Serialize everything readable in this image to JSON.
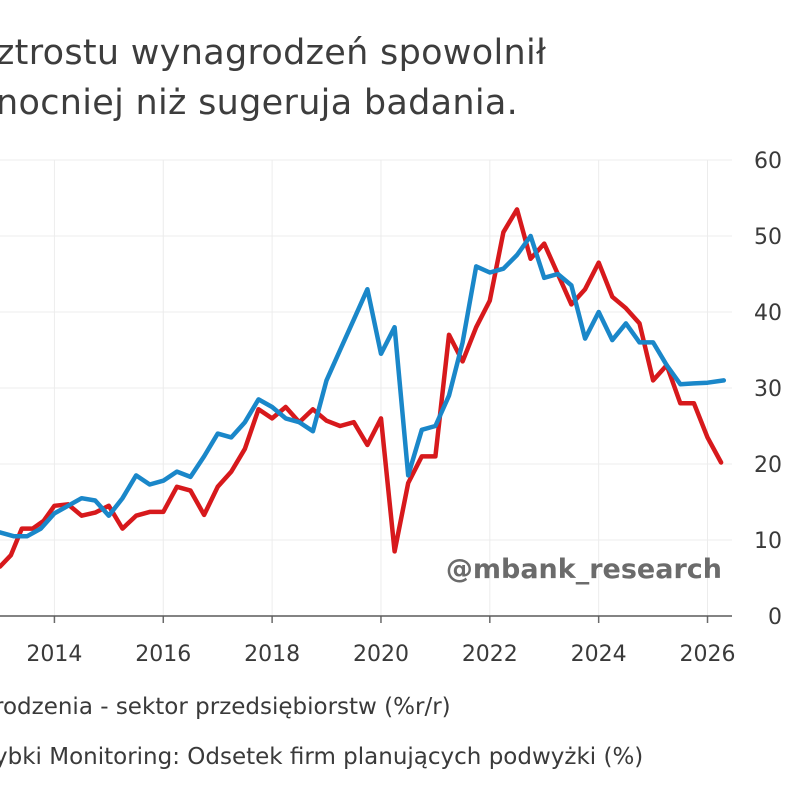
{
  "title": {
    "line1": "ztrostu wynagrodzeń spowolnił",
    "line2": "nocniej niż sugeruja badania."
  },
  "watermark": "@mbank_research",
  "legend": [
    {
      "label": "rodzenia - sektor przedsiębiorstw (%r/r)",
      "color": "#d7191c"
    },
    {
      "label": "ybki Monitoring: Odsetek firm planujących podwyżki (%)",
      "color": "#1a87c9"
    }
  ],
  "chart_data": {
    "type": "line",
    "x_tick_labels": [
      "2014",
      "2016",
      "2018",
      "2020",
      "2022",
      "2024",
      "2026"
    ],
    "y_tick_labels": [
      "0",
      "10",
      "20",
      "30",
      "40",
      "50",
      "60"
    ],
    "ylim": [
      0,
      60
    ],
    "xlim": [
      2013.0,
      2026.45
    ],
    "y_axis_side": "right",
    "grid": true,
    "series": [
      {
        "name": "rodzenia - sektor przedsiębiorstw (%r/r)",
        "color": "#d7191c",
        "points": [
          [
            2013.0,
            6.5
          ],
          [
            2013.2,
            8.0
          ],
          [
            2013.4,
            11.5
          ],
          [
            2013.6,
            11.5
          ],
          [
            2013.8,
            12.5
          ],
          [
            2014.0,
            14.5
          ],
          [
            2014.25,
            14.7
          ],
          [
            2014.5,
            13.2
          ],
          [
            2014.75,
            13.6
          ],
          [
            2015.0,
            14.5
          ],
          [
            2015.25,
            11.5
          ],
          [
            2015.5,
            13.2
          ],
          [
            2015.75,
            13.7
          ],
          [
            2016.0,
            13.7
          ],
          [
            2016.25,
            17.0
          ],
          [
            2016.5,
            16.5
          ],
          [
            2016.75,
            13.3
          ],
          [
            2017.0,
            17.0
          ],
          [
            2017.25,
            19.0
          ],
          [
            2017.5,
            22.0
          ],
          [
            2017.75,
            27.2
          ],
          [
            2018.0,
            26.0
          ],
          [
            2018.25,
            27.5
          ],
          [
            2018.5,
            25.5
          ],
          [
            2018.75,
            27.2
          ],
          [
            2019.0,
            25.7
          ],
          [
            2019.25,
            25.0
          ],
          [
            2019.5,
            25.5
          ],
          [
            2019.75,
            22.5
          ],
          [
            2020.0,
            26.0
          ],
          [
            2020.25,
            8.5
          ],
          [
            2020.5,
            17.5
          ],
          [
            2020.75,
            21.0
          ],
          [
            2021.0,
            21.0
          ],
          [
            2021.25,
            37.0
          ],
          [
            2021.5,
            33.5
          ],
          [
            2021.75,
            38.0
          ],
          [
            2022.0,
            41.5
          ],
          [
            2022.25,
            50.5
          ],
          [
            2022.5,
            53.5
          ],
          [
            2022.75,
            47.0
          ],
          [
            2023.0,
            49.0
          ],
          [
            2023.25,
            45.0
          ],
          [
            2023.5,
            41.0
          ],
          [
            2023.75,
            43.0
          ],
          [
            2024.0,
            46.5
          ],
          [
            2024.25,
            42.0
          ],
          [
            2024.5,
            40.5
          ],
          [
            2024.75,
            38.5
          ],
          [
            2025.0,
            31.0
          ],
          [
            2025.25,
            33.0
          ],
          [
            2025.5,
            28.0
          ],
          [
            2025.75,
            28.0
          ],
          [
            2026.0,
            23.5
          ],
          [
            2026.25,
            20.2
          ]
        ]
      },
      {
        "name": "ybki Monitoring: Odsetek firm planujących podwyżki (%)",
        "color": "#1a87c9",
        "points": [
          [
            2013.0,
            11.0
          ],
          [
            2013.25,
            10.5
          ],
          [
            2013.5,
            10.5
          ],
          [
            2013.75,
            11.5
          ],
          [
            2014.0,
            13.5
          ],
          [
            2014.25,
            14.5
          ],
          [
            2014.5,
            15.5
          ],
          [
            2014.75,
            15.2
          ],
          [
            2015.0,
            13.2
          ],
          [
            2015.25,
            15.5
          ],
          [
            2015.5,
            18.5
          ],
          [
            2015.75,
            17.3
          ],
          [
            2016.0,
            17.8
          ],
          [
            2016.25,
            19.0
          ],
          [
            2016.5,
            18.3
          ],
          [
            2016.75,
            21.0
          ],
          [
            2017.0,
            24.0
          ],
          [
            2017.25,
            23.5
          ],
          [
            2017.5,
            25.5
          ],
          [
            2017.75,
            28.5
          ],
          [
            2018.0,
            27.5
          ],
          [
            2018.25,
            26.0
          ],
          [
            2018.5,
            25.5
          ],
          [
            2018.75,
            24.3
          ],
          [
            2019.0,
            31.0
          ],
          [
            2019.25,
            35.0
          ],
          [
            2019.5,
            39.0
          ],
          [
            2019.75,
            43.0
          ],
          [
            2020.0,
            34.5
          ],
          [
            2020.25,
            38.0
          ],
          [
            2020.5,
            18.5
          ],
          [
            2020.75,
            24.5
          ],
          [
            2021.0,
            25.0
          ],
          [
            2021.25,
            29.0
          ],
          [
            2021.5,
            36.0
          ],
          [
            2021.75,
            46.0
          ],
          [
            2022.0,
            45.2
          ],
          [
            2022.25,
            45.7
          ],
          [
            2022.5,
            47.5
          ],
          [
            2022.75,
            50.0
          ],
          [
            2023.0,
            44.5
          ],
          [
            2023.25,
            45.0
          ],
          [
            2023.5,
            43.5
          ],
          [
            2023.75,
            36.5
          ],
          [
            2024.0,
            40.0
          ],
          [
            2024.25,
            36.3
          ],
          [
            2024.5,
            38.5
          ],
          [
            2024.75,
            36.0
          ],
          [
            2025.0,
            36.0
          ],
          [
            2025.25,
            33.0
          ],
          [
            2025.5,
            30.5
          ],
          [
            2025.75,
            30.6
          ],
          [
            2026.0,
            30.7
          ],
          [
            2026.3,
            31.0
          ]
        ]
      }
    ]
  }
}
